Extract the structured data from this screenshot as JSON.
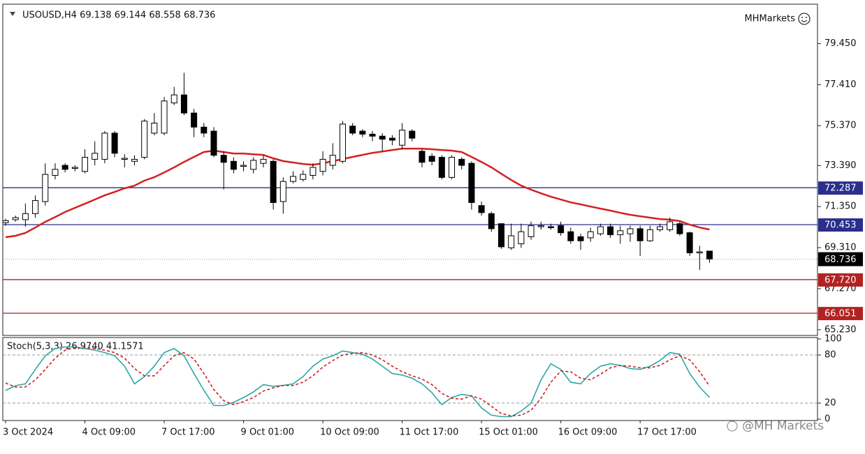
{
  "brand": "MHMarkets",
  "watermark": "@MH Markets",
  "chart_data": [
    {
      "type": "candlestick",
      "title": "USOUSD,H4 69.138 69.144 68.558 68.736",
      "categories": [
        "3 Oct 2024",
        null,
        null,
        null,
        null,
        null,
        null,
        null,
        "4 Oct 09:00",
        null,
        null,
        null,
        null,
        null,
        null,
        null,
        "7 Oct 17:00",
        null,
        null,
        null,
        null,
        null,
        null,
        null,
        "9 Oct 01:00",
        null,
        null,
        null,
        null,
        null,
        null,
        null,
        "10 Oct 09:00",
        null,
        null,
        null,
        null,
        null,
        null,
        null,
        "11 Oct 17:00",
        null,
        null,
        null,
        null,
        null,
        null,
        null,
        "15 Oct 01:00",
        null,
        null,
        null,
        null,
        null,
        null,
        null,
        "16 Oct 09:00",
        null,
        null,
        null,
        null,
        null,
        null,
        null,
        "17 Oct 17:00",
        null,
        null,
        null,
        null,
        null,
        null,
        null
      ],
      "open": [
        70.55,
        70.7,
        70.7,
        71.0,
        71.6,
        72.9,
        73.4,
        73.25,
        73.1,
        73.7,
        73.7,
        75.0,
        73.7,
        73.6,
        73.8,
        75.0,
        75.0,
        76.5,
        76.9,
        76.0,
        75.3,
        75.1,
        73.9,
        73.6,
        73.35,
        73.2,
        73.5,
        73.6,
        71.6,
        72.6,
        72.7,
        72.9,
        73.1,
        73.4,
        73.6,
        75.35,
        75.1,
        74.95,
        74.85,
        74.75,
        74.4,
        75.1,
        74.1,
        73.85,
        73.8,
        72.8,
        73.7,
        73.5,
        71.4,
        71.0,
        70.5,
        69.3,
        69.5,
        69.85,
        70.35,
        70.35,
        70.4,
        70.1,
        69.85,
        69.8,
        70.0,
        70.35,
        69.95,
        70.0,
        70.25,
        69.65,
        70.2,
        70.2,
        70.5,
        70.05,
        69.1,
        69.138
      ],
      "high": [
        70.75,
        70.9,
        71.5,
        71.9,
        73.5,
        73.5,
        73.5,
        73.4,
        74.2,
        74.6,
        75.1,
        75.1,
        73.95,
        73.9,
        75.7,
        76.0,
        76.8,
        77.3,
        78.0,
        76.2,
        75.5,
        75.3,
        74.1,
        73.8,
        73.6,
        73.8,
        73.9,
        73.7,
        72.8,
        73.1,
        73.15,
        73.5,
        74.1,
        74.5,
        75.6,
        75.5,
        75.2,
        75.1,
        75.0,
        74.9,
        75.5,
        75.2,
        74.2,
        74.0,
        73.9,
        73.9,
        73.8,
        73.6,
        71.6,
        71.1,
        70.5,
        70.5,
        70.5,
        70.6,
        70.6,
        70.5,
        70.6,
        70.3,
        70.0,
        70.3,
        70.5,
        70.5,
        70.4,
        70.4,
        70.4,
        70.4,
        70.5,
        70.8,
        70.6,
        70.1,
        69.4,
        69.144
      ],
      "low": [
        70.4,
        70.6,
        70.35,
        70.8,
        71.4,
        72.7,
        73.05,
        73.1,
        73.0,
        73.4,
        73.5,
        73.8,
        73.3,
        73.4,
        73.7,
        74.9,
        74.9,
        76.4,
        75.9,
        74.8,
        74.8,
        73.8,
        72.2,
        73.0,
        73.1,
        73.0,
        73.3,
        71.2,
        71.0,
        72.5,
        72.6,
        72.7,
        72.9,
        73.2,
        73.5,
        74.9,
        74.8,
        74.6,
        74.1,
        74.4,
        74.2,
        74.6,
        73.3,
        73.4,
        72.7,
        72.7,
        73.2,
        71.2,
        70.9,
        70.1,
        69.25,
        69.2,
        69.3,
        69.7,
        70.2,
        70.2,
        69.9,
        69.5,
        69.2,
        69.6,
        69.9,
        69.8,
        69.5,
        69.6,
        68.9,
        69.6,
        70.1,
        70.1,
        69.9,
        68.9,
        68.2,
        68.558
      ],
      "close": [
        70.65,
        70.8,
        71.0,
        71.65,
        72.95,
        73.2,
        73.2,
        73.3,
        73.8,
        74.0,
        75.0,
        74.0,
        73.75,
        73.7,
        75.6,
        75.5,
        76.6,
        76.9,
        76.0,
        75.3,
        75.0,
        73.9,
        73.55,
        73.2,
        73.4,
        73.65,
        73.7,
        71.55,
        72.6,
        72.85,
        72.95,
        73.3,
        73.7,
        73.9,
        75.45,
        75.0,
        74.95,
        74.85,
        74.7,
        74.65,
        75.15,
        74.75,
        73.55,
        73.6,
        72.8,
        73.8,
        73.4,
        71.55,
        71.05,
        70.25,
        69.35,
        69.9,
        70.1,
        70.4,
        70.4,
        70.3,
        70.05,
        69.65,
        69.65,
        70.1,
        70.35,
        69.95,
        70.15,
        70.25,
        69.65,
        70.2,
        70.35,
        70.6,
        70.0,
        69.05,
        69.1,
        68.736
      ],
      "up_color": "#ffffff",
      "down_color": "#000000",
      "overlays": [
        {
          "type": "line",
          "color": "#d42020",
          "values": [
            69.83,
            69.9,
            70.04,
            70.31,
            70.59,
            70.83,
            71.08,
            71.29,
            71.49,
            71.7,
            71.91,
            72.08,
            72.26,
            72.39,
            72.64,
            72.81,
            73.05,
            73.3,
            73.57,
            73.82,
            74.06,
            74.13,
            74.06,
            73.99,
            73.99,
            73.95,
            73.92,
            73.75,
            73.61,
            73.54,
            73.47,
            73.43,
            73.5,
            73.61,
            73.71,
            73.82,
            73.92,
            74.02,
            74.09,
            74.16,
            74.23,
            74.23,
            74.23,
            74.2,
            74.16,
            74.13,
            74.06,
            73.82,
            73.57,
            73.3,
            72.98,
            72.67,
            72.39,
            72.19,
            72.01,
            71.84,
            71.7,
            71.56,
            71.46,
            71.35,
            71.25,
            71.15,
            71.04,
            70.94,
            70.87,
            70.8,
            70.73,
            70.7,
            70.63,
            70.45,
            70.31,
            70.21
          ]
        }
      ],
      "levels": [
        {
          "value": 72.287,
          "color": "#2b2e8c"
        },
        {
          "value": 70.453,
          "color": "#2b2e8c"
        },
        {
          "value": 67.72,
          "label": "67.720",
          "color": "#b22222"
        },
        {
          "value": 66.051,
          "color": "#b22222"
        }
      ],
      "ylim": [
        64.98,
        81.34
      ],
      "yticks": [
        {
          "value": 65.23,
          "label": "65.230"
        },
        {
          "value": 67.27,
          "label": "67.270"
        },
        {
          "value": 69.31,
          "label": "69.310"
        },
        {
          "value": 71.35,
          "label": "71.350"
        },
        {
          "value": 73.39,
          "label": "73.390"
        },
        {
          "value": 75.37,
          "label": "75.370"
        },
        {
          "value": 77.41,
          "label": "77.410"
        },
        {
          "value": 79.45,
          "label": "79.450"
        }
      ]
    },
    {
      "type": "line",
      "title": "Stoch(5,3,3) 26.9740 41.1571",
      "series": [
        {
          "color": "#2aa7a7",
          "dash": false,
          "values": [
            35.7,
            41.7,
            44,
            62,
            79,
            88,
            90,
            90,
            88,
            86,
            83,
            79,
            66,
            44,
            53,
            66,
            83,
            88,
            79,
            57,
            36,
            17,
            17,
            21,
            27,
            34,
            43,
            41,
            42,
            44,
            53,
            66,
            75,
            79,
            85,
            83,
            81,
            75,
            66,
            57,
            55,
            51,
            44,
            33,
            18,
            27,
            31,
            29,
            14,
            5,
            3,
            3,
            10,
            20,
            49,
            69,
            62,
            46,
            44,
            57,
            66,
            69,
            67,
            63,
            62,
            66,
            73,
            83,
            81,
            57,
            40,
            26.974
          ]
        },
        {
          "color": "#cc2222",
          "dash": true,
          "values": [
            45,
            40,
            40,
            49,
            62,
            76,
            86,
            89,
            89,
            88,
            86,
            83,
            76,
            63,
            54,
            54,
            67,
            79,
            83,
            75,
            57,
            37,
            23,
            18,
            22,
            27,
            35,
            39,
            42,
            42,
            46,
            54,
            65,
            73,
            80,
            82,
            83,
            80,
            74,
            66,
            59,
            54,
            50,
            43,
            32,
            26,
            25,
            29,
            25,
            16,
            7,
            4,
            5,
            11,
            26,
            46,
            60,
            59,
            51,
            49,
            56,
            64,
            67,
            66,
            64,
            64,
            67,
            74,
            79,
            74,
            59,
            41.1571
          ]
        }
      ],
      "levels": [
        20,
        80
      ],
      "ylim": [
        0,
        100
      ],
      "yticks": [
        0,
        20,
        80,
        100
      ]
    }
  ]
}
